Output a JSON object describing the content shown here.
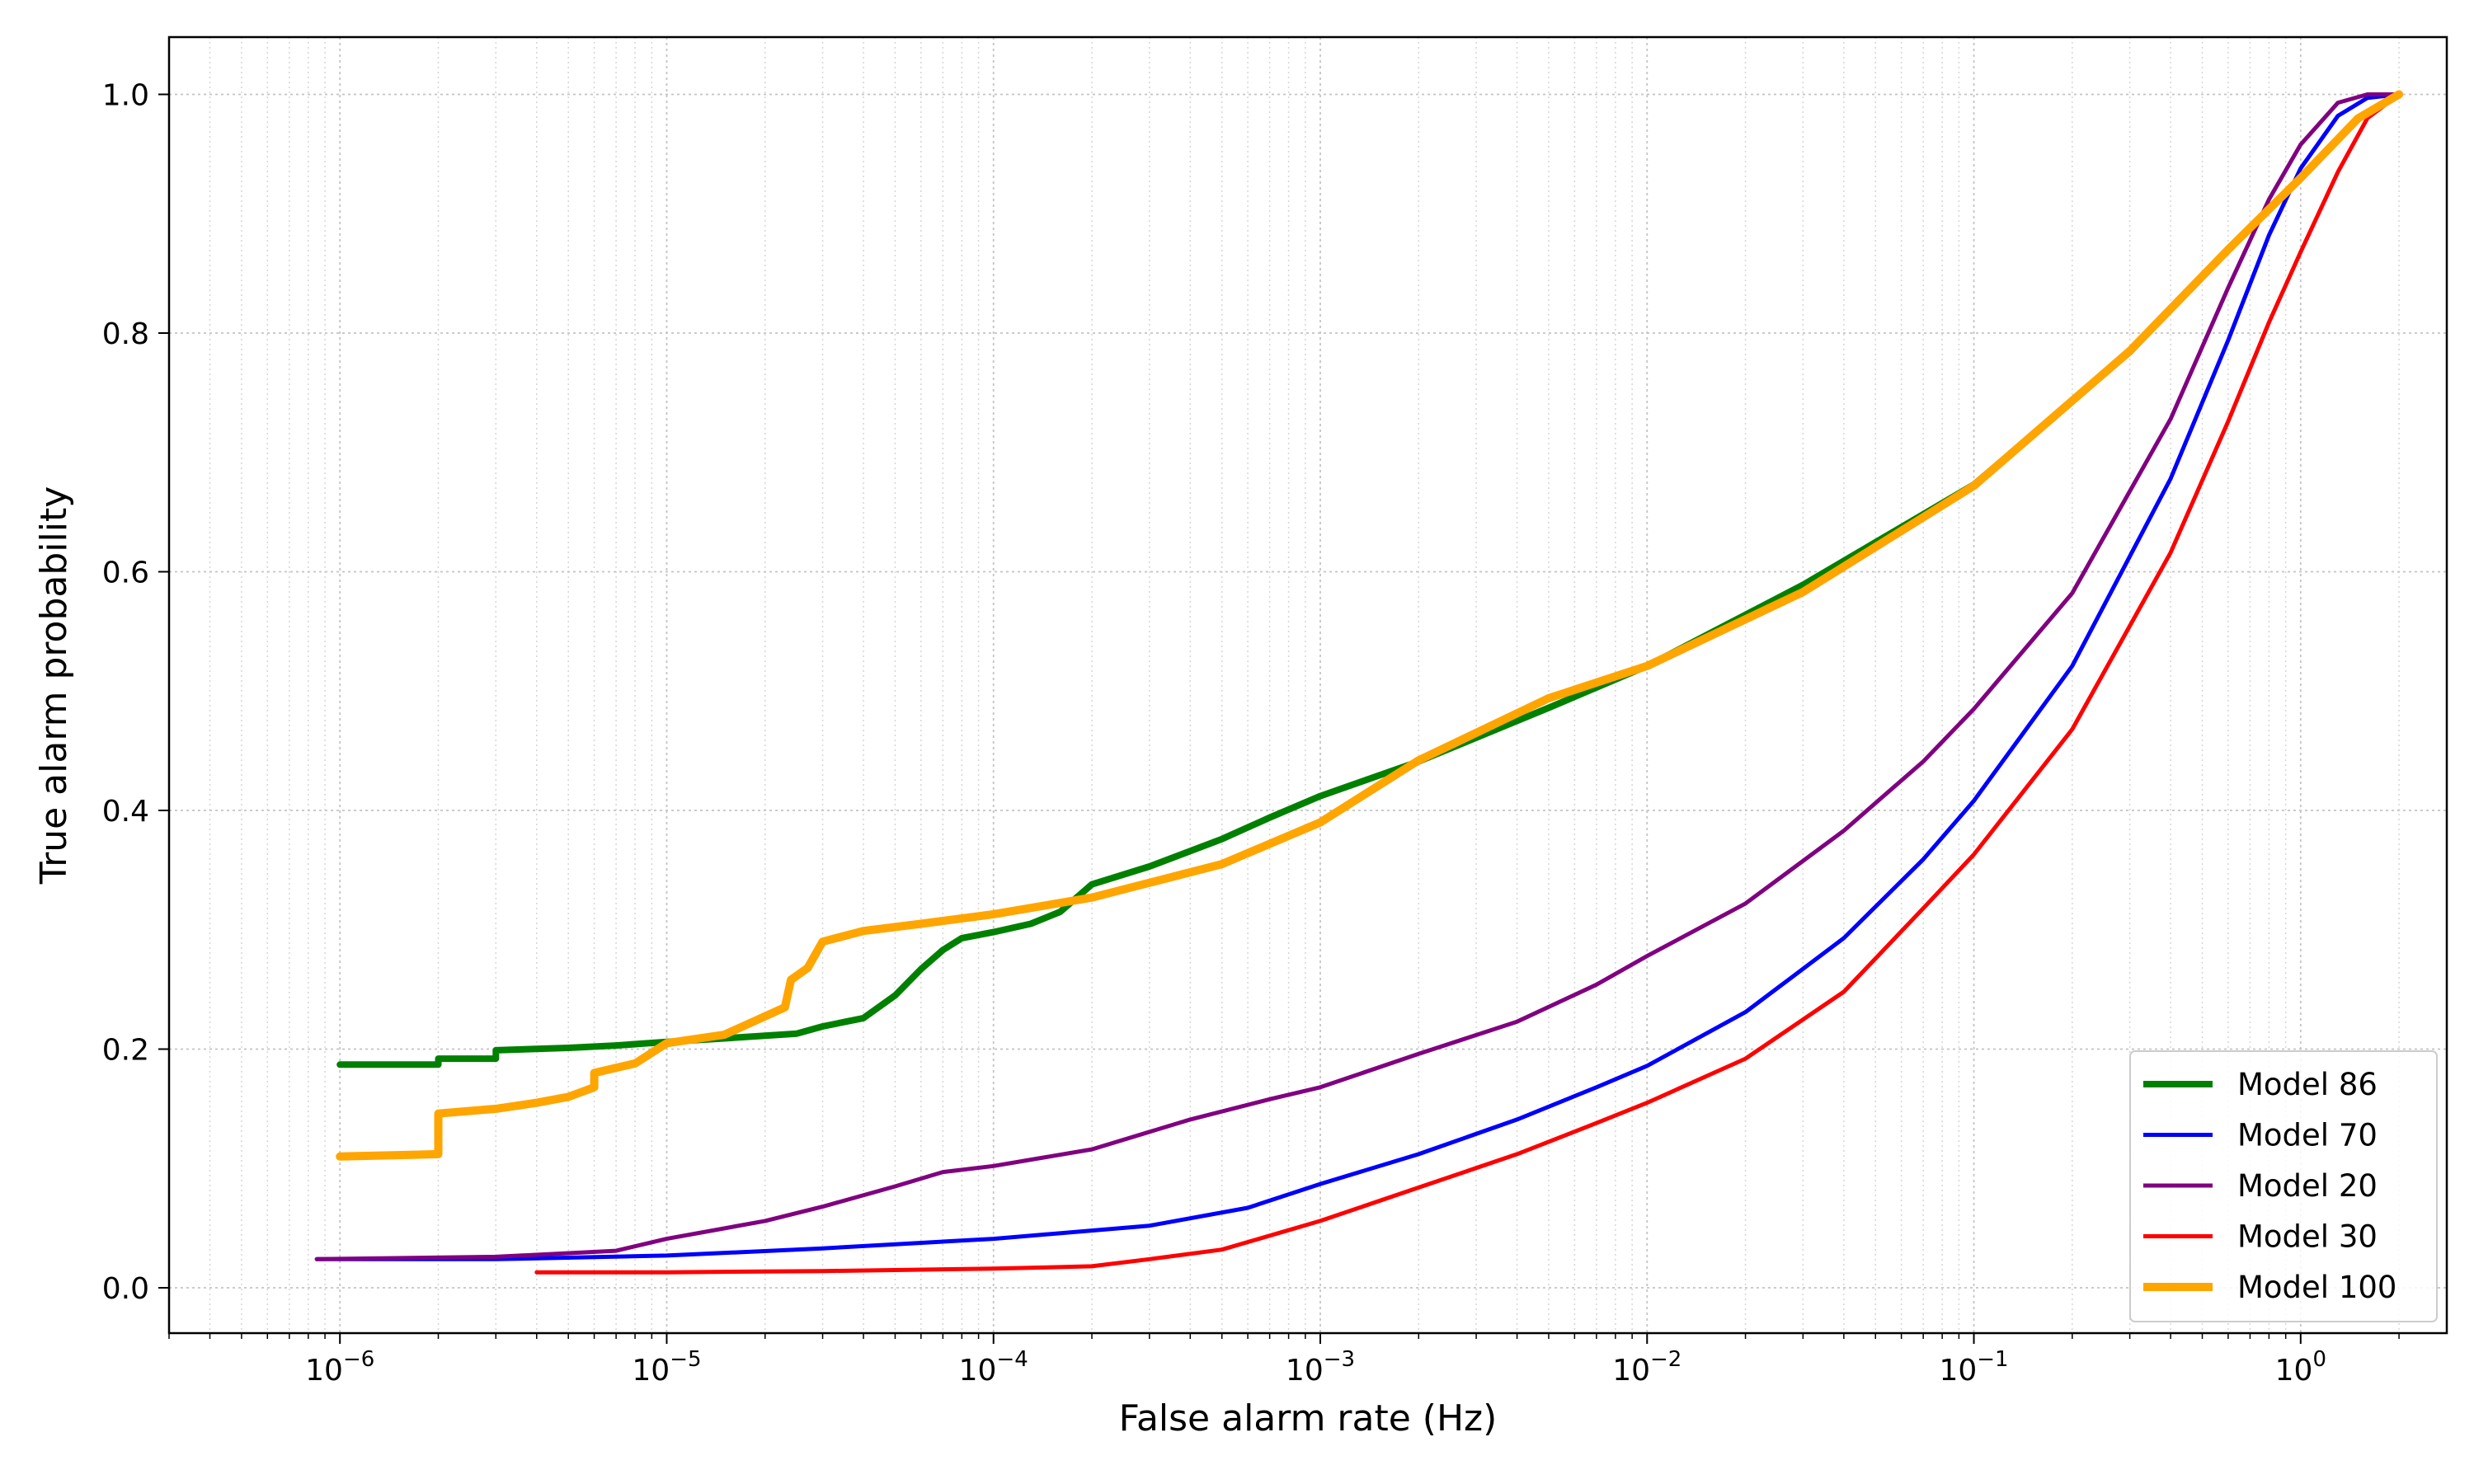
{
  "chart_data": {
    "type": "line",
    "title": "",
    "xlabel": "False alarm rate (Hz)",
    "ylabel": "True alarm probability",
    "xscale": "log",
    "xlim": [
      3e-07,
      2.8
    ],
    "ylim": [
      -0.038,
      1.048
    ],
    "grid": true,
    "minor_grid": true,
    "legend_position": "lower-right",
    "x_ticks": [
      {
        "value": 1e-06,
        "base": "10",
        "exp": "−6"
      },
      {
        "value": 1e-05,
        "base": "10",
        "exp": "−5"
      },
      {
        "value": 0.0001,
        "base": "10",
        "exp": "−4"
      },
      {
        "value": 0.001,
        "base": "10",
        "exp": "−3"
      },
      {
        "value": 0.01,
        "base": "10",
        "exp": "−2"
      },
      {
        "value": 0.1,
        "base": "10",
        "exp": "−1"
      },
      {
        "value": 1,
        "base": "10",
        "exp": "0"
      }
    ],
    "y_ticks": [
      {
        "value": 0.0,
        "label": "0.0"
      },
      {
        "value": 0.2,
        "label": "0.2"
      },
      {
        "value": 0.4,
        "label": "0.4"
      },
      {
        "value": 0.6,
        "label": "0.6"
      },
      {
        "value": 0.8,
        "label": "0.8"
      },
      {
        "value": 1.0,
        "label": "1.0"
      }
    ],
    "series": [
      {
        "name": "Model 86",
        "color": "#008000",
        "width": 8,
        "points": [
          [
            1e-06,
            0.187
          ],
          [
            2e-06,
            0.187
          ],
          [
            2e-06,
            0.192
          ],
          [
            3e-06,
            0.192
          ],
          [
            3e-06,
            0.199
          ],
          [
            5e-06,
            0.201
          ],
          [
            7e-06,
            0.203
          ],
          [
            1e-05,
            0.206
          ],
          [
            1.5e-05,
            0.209
          ],
          [
            2.5e-05,
            0.213
          ],
          [
            3e-05,
            0.219
          ],
          [
            4e-05,
            0.226
          ],
          [
            5e-05,
            0.245
          ],
          [
            6e-05,
            0.267
          ],
          [
            7e-05,
            0.283
          ],
          [
            8e-05,
            0.293
          ],
          [
            0.0001,
            0.298
          ],
          [
            0.00013,
            0.305
          ],
          [
            0.00016,
            0.315
          ],
          [
            0.0002,
            0.338
          ],
          [
            0.0003,
            0.353
          ],
          [
            0.0005,
            0.376
          ],
          [
            0.0007,
            0.394
          ],
          [
            0.001,
            0.412
          ],
          [
            0.002,
            0.441
          ],
          [
            0.005,
            0.486
          ],
          [
            0.01,
            0.521
          ],
          [
            0.03,
            0.589
          ],
          [
            0.1,
            0.673
          ],
          [
            0.3,
            0.784
          ],
          [
            0.6,
            0.87
          ],
          [
            1.0,
            0.93
          ],
          [
            1.5,
            0.98
          ],
          [
            2.0,
            1.0
          ]
        ]
      },
      {
        "name": "Model 70",
        "color": "#0000ff",
        "width": 5,
        "points": [
          [
            8.5e-07,
            0.024
          ],
          [
            3e-06,
            0.024
          ],
          [
            1e-05,
            0.027
          ],
          [
            3e-05,
            0.033
          ],
          [
            0.0001,
            0.041
          ],
          [
            0.0003,
            0.052
          ],
          [
            0.0006,
            0.067
          ],
          [
            0.001,
            0.087
          ],
          [
            0.002,
            0.112
          ],
          [
            0.004,
            0.141
          ],
          [
            0.007,
            0.168
          ],
          [
            0.01,
            0.186
          ],
          [
            0.02,
            0.231
          ],
          [
            0.04,
            0.293
          ],
          [
            0.07,
            0.359
          ],
          [
            0.1,
            0.408
          ],
          [
            0.2,
            0.521
          ],
          [
            0.4,
            0.678
          ],
          [
            0.6,
            0.794
          ],
          [
            0.8,
            0.882
          ],
          [
            1.0,
            0.938
          ],
          [
            1.3,
            0.982
          ],
          [
            1.6,
            0.997
          ],
          [
            2.0,
            1.0
          ]
        ]
      },
      {
        "name": "Model 20",
        "color": "#800080",
        "width": 5,
        "points": [
          [
            8.5e-07,
            0.024
          ],
          [
            3e-06,
            0.026
          ],
          [
            7e-06,
            0.031
          ],
          [
            1e-05,
            0.041
          ],
          [
            2e-05,
            0.056
          ],
          [
            3e-05,
            0.068
          ],
          [
            5e-05,
            0.085
          ],
          [
            7e-05,
            0.097
          ],
          [
            0.0001,
            0.102
          ],
          [
            0.0002,
            0.116
          ],
          [
            0.0004,
            0.141
          ],
          [
            0.0007,
            0.158
          ],
          [
            0.001,
            0.168
          ],
          [
            0.002,
            0.196
          ],
          [
            0.004,
            0.223
          ],
          [
            0.007,
            0.254
          ],
          [
            0.01,
            0.278
          ],
          [
            0.02,
            0.322
          ],
          [
            0.04,
            0.383
          ],
          [
            0.07,
            0.441
          ],
          [
            0.1,
            0.485
          ],
          [
            0.2,
            0.582
          ],
          [
            0.4,
            0.728
          ],
          [
            0.6,
            0.838
          ],
          [
            0.8,
            0.912
          ],
          [
            1.0,
            0.958
          ],
          [
            1.3,
            0.993
          ],
          [
            1.6,
            1.0
          ],
          [
            2.0,
            1.0
          ]
        ]
      },
      {
        "name": "Model 30",
        "color": "#ff0000",
        "width": 5,
        "points": [
          [
            4e-06,
            0.013
          ],
          [
            1e-05,
            0.013
          ],
          [
            3e-05,
            0.014
          ],
          [
            0.0001,
            0.016
          ],
          [
            0.0002,
            0.018
          ],
          [
            0.0003,
            0.024
          ],
          [
            0.0005,
            0.032
          ],
          [
            0.001,
            0.056
          ],
          [
            0.002,
            0.084
          ],
          [
            0.004,
            0.112
          ],
          [
            0.007,
            0.138
          ],
          [
            0.01,
            0.155
          ],
          [
            0.02,
            0.192
          ],
          [
            0.04,
            0.248
          ],
          [
            0.07,
            0.318
          ],
          [
            0.1,
            0.363
          ],
          [
            0.2,
            0.468
          ],
          [
            0.4,
            0.616
          ],
          [
            0.6,
            0.726
          ],
          [
            0.8,
            0.809
          ],
          [
            1.0,
            0.868
          ],
          [
            1.3,
            0.935
          ],
          [
            1.6,
            0.98
          ],
          [
            2.0,
            1.0
          ]
        ]
      },
      {
        "name": "Model 100",
        "color": "#ffa500",
        "width": 10,
        "points": [
          [
            1e-06,
            0.11
          ],
          [
            2e-06,
            0.112
          ],
          [
            2e-06,
            0.146
          ],
          [
            3e-06,
            0.15
          ],
          [
            4e-06,
            0.155
          ],
          [
            5e-06,
            0.16
          ],
          [
            6e-06,
            0.168
          ],
          [
            6e-06,
            0.18
          ],
          [
            8e-06,
            0.188
          ],
          [
            1e-05,
            0.205
          ],
          [
            1.5e-05,
            0.212
          ],
          [
            2.3e-05,
            0.235
          ],
          [
            2.4e-05,
            0.258
          ],
          [
            2.7e-05,
            0.268
          ],
          [
            3e-05,
            0.29
          ],
          [
            4e-05,
            0.299
          ],
          [
            6e-05,
            0.305
          ],
          [
            0.0001,
            0.313
          ],
          [
            0.0002,
            0.327
          ],
          [
            0.0005,
            0.355
          ],
          [
            0.001,
            0.39
          ],
          [
            0.002,
            0.442
          ],
          [
            0.005,
            0.494
          ],
          [
            0.01,
            0.521
          ],
          [
            0.03,
            0.583
          ],
          [
            0.1,
            0.672
          ],
          [
            0.3,
            0.785
          ],
          [
            0.6,
            0.87
          ],
          [
            1.0,
            0.93
          ],
          [
            1.5,
            0.98
          ],
          [
            2.0,
            1.0
          ]
        ]
      }
    ]
  }
}
